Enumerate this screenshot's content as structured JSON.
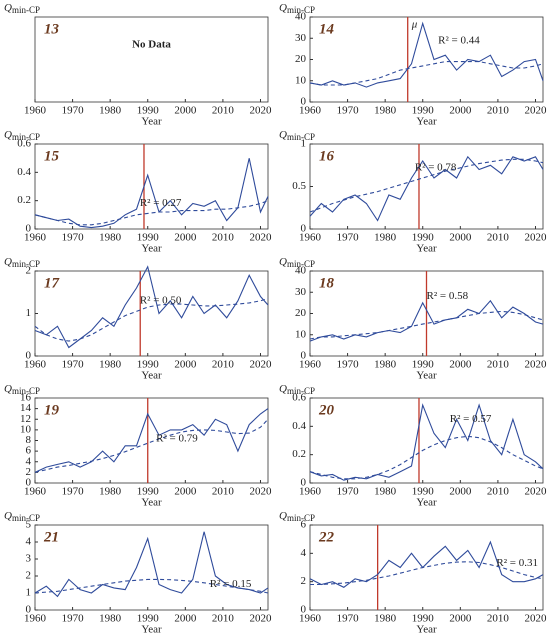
{
  "chart_data": [
    {
      "type": "line",
      "panel": "13",
      "ylabel": "Q",
      "ylabel_sub": "min-CP",
      "xlabel": "Year",
      "xlim": [
        1960,
        2022
      ],
      "xticks": [
        1960,
        1970,
        1980,
        1990,
        2000,
        2010,
        2020
      ],
      "annotation": "No Data"
    },
    {
      "type": "line",
      "panel": "14",
      "ylabel": "Q",
      "ylabel_sub": "min-CP",
      "xlabel": "Year",
      "xlim": [
        1960,
        2022
      ],
      "xticks": [
        1960,
        1970,
        1980,
        1990,
        2000,
        2010,
        2020
      ],
      "ylim": [
        0,
        40
      ],
      "yticks": [
        0,
        10,
        20,
        30,
        40
      ],
      "x": [
        1960,
        1963,
        1966,
        1969,
        1972,
        1975,
        1978,
        1981,
        1984,
        1987,
        1990,
        1993,
        1996,
        1999,
        2002,
        2005,
        2008,
        2011,
        2014,
        2017,
        2020,
        2022
      ],
      "series": [
        {
          "color": "#2f4b9b",
          "values": [
            9,
            8,
            10,
            8,
            9,
            7,
            9,
            10,
            11,
            18,
            37,
            20,
            22,
            15,
            20,
            19,
            22,
            12,
            15,
            19,
            20,
            10
          ]
        },
        {
          "color": "#2f4b9b",
          "style": "dashed",
          "values": [
            9,
            8,
            8,
            8,
            9,
            10,
            11,
            13,
            15,
            16,
            17,
            18,
            19,
            19,
            19,
            19,
            18,
            17,
            16,
            16,
            17,
            18
          ]
        }
      ],
      "change_point": 1986,
      "change_point_color": "#c0392b",
      "mu_label": "μ",
      "r2_label": "R² = 0.44"
    },
    {
      "type": "line",
      "panel": "15",
      "ylabel": "Q",
      "ylabel_sub": "min-CP",
      "xlabel": "Year",
      "xlim": [
        1960,
        2022
      ],
      "xticks": [
        1960,
        1970,
        1980,
        1990,
        2000,
        2010,
        2020
      ],
      "ylim": [
        0,
        0.6
      ],
      "yticks": [
        0,
        0.2,
        0.4,
        0.6
      ],
      "x": [
        1960,
        1963,
        1966,
        1969,
        1972,
        1975,
        1978,
        1981,
        1984,
        1987,
        1990,
        1993,
        1996,
        1999,
        2002,
        2005,
        2008,
        2011,
        2014,
        2017,
        2020,
        2022
      ],
      "series": [
        {
          "color": "#2f4b9b",
          "values": [
            0.1,
            0.08,
            0.06,
            0.07,
            0.02,
            0.01,
            0.02,
            0.04,
            0.1,
            0.14,
            0.38,
            0.12,
            0.2,
            0.1,
            0.18,
            0.16,
            0.2,
            0.06,
            0.15,
            0.5,
            0.12,
            0.23
          ]
        },
        {
          "color": "#2f4b9b",
          "style": "dashed",
          "values": [
            0.1,
            0.08,
            0.06,
            0.04,
            0.03,
            0.03,
            0.04,
            0.06,
            0.08,
            0.1,
            0.11,
            0.12,
            0.12,
            0.13,
            0.13,
            0.13,
            0.14,
            0.14,
            0.15,
            0.16,
            0.18,
            0.2
          ]
        }
      ],
      "change_point": 1989,
      "change_point_color": "#c0392b",
      "r2_label": "R² = 0.27"
    },
    {
      "type": "line",
      "panel": "16",
      "ylabel": "Q",
      "ylabel_sub": "min-CP",
      "xlabel": "Year",
      "xlim": [
        1960,
        2022
      ],
      "xticks": [
        1960,
        1970,
        1980,
        1990,
        2000,
        2010,
        2020
      ],
      "ylim": [
        0,
        1
      ],
      "yticks": [
        0,
        0.5,
        1
      ],
      "x": [
        1960,
        1963,
        1966,
        1969,
        1972,
        1975,
        1978,
        1981,
        1984,
        1987,
        1990,
        1993,
        1996,
        1999,
        2002,
        2005,
        2008,
        2011,
        2014,
        2017,
        2020,
        2022
      ],
      "series": [
        {
          "color": "#2f4b9b",
          "values": [
            0.15,
            0.3,
            0.2,
            0.35,
            0.4,
            0.3,
            0.1,
            0.4,
            0.35,
            0.6,
            0.8,
            0.6,
            0.7,
            0.6,
            0.85,
            0.7,
            0.75,
            0.65,
            0.85,
            0.8,
            0.85,
            0.7
          ]
        },
        {
          "color": "#2f4b9b",
          "style": "dashed",
          "values": [
            0.2,
            0.25,
            0.3,
            0.34,
            0.38,
            0.41,
            0.44,
            0.48,
            0.52,
            0.56,
            0.6,
            0.64,
            0.68,
            0.71,
            0.74,
            0.77,
            0.79,
            0.81,
            0.82,
            0.82,
            0.8,
            0.78
          ]
        }
      ],
      "change_point": 1989,
      "change_point_color": "#c0392b",
      "r2_label": "R² = 0.78"
    },
    {
      "type": "line",
      "panel": "17",
      "ylabel": "Q",
      "ylabel_sub": "min-CP",
      "xlabel": "Year",
      "xlim": [
        1960,
        2022
      ],
      "xticks": [
        1960,
        1970,
        1980,
        1990,
        2000,
        2010,
        2020
      ],
      "ylim": [
        0,
        2
      ],
      "yticks": [
        0,
        1,
        2
      ],
      "x": [
        1960,
        1963,
        1966,
        1969,
        1972,
        1975,
        1978,
        1981,
        1984,
        1987,
        1990,
        1993,
        1996,
        1999,
        2002,
        2005,
        2008,
        2011,
        2014,
        2017,
        2020,
        2022
      ],
      "series": [
        {
          "color": "#2f4b9b",
          "values": [
            0.6,
            0.5,
            0.7,
            0.2,
            0.4,
            0.6,
            0.9,
            0.7,
            1.2,
            1.6,
            2.1,
            1.0,
            1.3,
            0.9,
            1.4,
            1.0,
            1.2,
            0.9,
            1.3,
            1.9,
            1.4,
            1.2
          ]
        },
        {
          "color": "#2f4b9b",
          "style": "dashed",
          "values": [
            0.7,
            0.5,
            0.4,
            0.35,
            0.4,
            0.5,
            0.65,
            0.8,
            0.95,
            1.05,
            1.15,
            1.2,
            1.22,
            1.22,
            1.2,
            1.18,
            1.18,
            1.2,
            1.22,
            1.25,
            1.3,
            1.35
          ]
        }
      ],
      "change_point": 1988,
      "change_point_color": "#c0392b",
      "r2_label": "R² = 0.50"
    },
    {
      "type": "line",
      "panel": "18",
      "ylabel": "Q",
      "ylabel_sub": "min-CP",
      "xlabel": "Year",
      "xlim": [
        1960,
        2022
      ],
      "xticks": [
        1960,
        1970,
        1980,
        1990,
        2000,
        2010,
        2020
      ],
      "ylim": [
        0,
        40
      ],
      "yticks": [
        0,
        10,
        20,
        30,
        40
      ],
      "x": [
        1960,
        1963,
        1966,
        1969,
        1972,
        1975,
        1978,
        1981,
        1984,
        1987,
        1990,
        1993,
        1996,
        1999,
        2002,
        2005,
        2008,
        2011,
        2014,
        2017,
        2020,
        2022
      ],
      "series": [
        {
          "color": "#2f4b9b",
          "values": [
            7,
            9,
            10,
            8,
            10,
            9,
            11,
            12,
            11,
            14,
            25,
            15,
            17,
            18,
            22,
            20,
            26,
            18,
            23,
            20,
            16,
            15
          ]
        },
        {
          "color": "#2f4b9b",
          "style": "dashed",
          "values": [
            8,
            9,
            9,
            9.5,
            10,
            10.5,
            11,
            12,
            13,
            14,
            15,
            16,
            17,
            18,
            19,
            20,
            20.5,
            21,
            20.5,
            19.5,
            18,
            17
          ]
        }
      ],
      "change_point": 1991,
      "change_point_color": "#c0392b",
      "r2_label": "R² = 0.58"
    },
    {
      "type": "line",
      "panel": "19",
      "ylabel": "Q",
      "ylabel_sub": "min-CP",
      "xlabel": "Year",
      "xlim": [
        1960,
        2022
      ],
      "xticks": [
        1960,
        1970,
        1980,
        1990,
        2000,
        2010,
        2020
      ],
      "ylim": [
        0,
        16
      ],
      "yticks": [
        0,
        2,
        4,
        6,
        8,
        10,
        12,
        14,
        16
      ],
      "x": [
        1960,
        1963,
        1966,
        1969,
        1972,
        1975,
        1978,
        1981,
        1984,
        1987,
        1990,
        1993,
        1996,
        1999,
        2002,
        2005,
        2008,
        2011,
        2014,
        2017,
        2020,
        2022
      ],
      "series": [
        {
          "color": "#2f4b9b",
          "values": [
            2,
            3,
            3.5,
            4,
            3,
            4,
            6,
            4,
            7,
            7,
            13,
            9,
            10,
            10,
            11,
            9,
            12,
            11,
            6,
            11,
            13,
            14
          ]
        },
        {
          "color": "#2f4b9b",
          "style": "dashed",
          "values": [
            2,
            2.5,
            3,
            3.3,
            3.7,
            4.1,
            4.6,
            5.2,
            5.9,
            6.7,
            7.5,
            8.3,
            9,
            9.6,
            9.9,
            10,
            9.9,
            9.6,
            9.3,
            9.4,
            10.5,
            12
          ]
        }
      ],
      "change_point": 1990,
      "change_point_color": "#c0392b",
      "r2_label": "R² = 0.79"
    },
    {
      "type": "line",
      "panel": "20",
      "ylabel": "Q",
      "ylabel_sub": "min-CP",
      "xlabel": "Year",
      "xlim": [
        1960,
        2022
      ],
      "xticks": [
        1960,
        1970,
        1980,
        1990,
        2000,
        2010,
        2020
      ],
      "ylim": [
        0,
        0.6
      ],
      "yticks": [
        0,
        0.2,
        0.4,
        0.6
      ],
      "x": [
        1960,
        1963,
        1966,
        1969,
        1972,
        1975,
        1978,
        1981,
        1984,
        1987,
        1990,
        1993,
        1996,
        1999,
        2002,
        2005,
        2008,
        2011,
        2014,
        2017,
        2020,
        2022
      ],
      "series": [
        {
          "color": "#2f4b9b",
          "values": [
            0.08,
            0.05,
            0.06,
            0.02,
            0.04,
            0.03,
            0.06,
            0.04,
            0.08,
            0.12,
            0.55,
            0.35,
            0.25,
            0.45,
            0.3,
            0.55,
            0.3,
            0.2,
            0.45,
            0.2,
            0.15,
            0.1
          ]
        },
        {
          "color": "#2f4b9b",
          "style": "dashed",
          "values": [
            0.08,
            0.06,
            0.04,
            0.03,
            0.03,
            0.04,
            0.06,
            0.09,
            0.13,
            0.18,
            0.23,
            0.27,
            0.3,
            0.32,
            0.33,
            0.32,
            0.29,
            0.25,
            0.2,
            0.16,
            0.12,
            0.1
          ]
        }
      ],
      "change_point": 1989,
      "change_point_color": "#c0392b",
      "r2_label": "R² = 0.57"
    },
    {
      "type": "line",
      "panel": "21",
      "ylabel": "Q",
      "ylabel_sub": "min-CP",
      "xlabel": "Year",
      "xlim": [
        1960,
        2022
      ],
      "xticks": [
        1960,
        1970,
        1980,
        1990,
        2000,
        2010,
        2020
      ],
      "ylim": [
        0,
        5
      ],
      "yticks": [
        0,
        1,
        2,
        3,
        4,
        5
      ],
      "x": [
        1960,
        1963,
        1966,
        1969,
        1972,
        1975,
        1978,
        1981,
        1984,
        1987,
        1990,
        1993,
        1996,
        1999,
        2002,
        2005,
        2008,
        2011,
        2014,
        2017,
        2020,
        2022
      ],
      "series": [
        {
          "color": "#2f4b9b",
          "values": [
            1,
            1.4,
            0.8,
            1.8,
            1.2,
            1.0,
            1.5,
            1.3,
            1.2,
            2.5,
            4.2,
            1.5,
            1.2,
            1.0,
            1.8,
            4.6,
            2.0,
            1.5,
            1.3,
            1.2,
            1.0,
            1.3
          ]
        },
        {
          "color": "#2f4b9b",
          "style": "dashed",
          "values": [
            1.0,
            1.05,
            1.1,
            1.2,
            1.3,
            1.4,
            1.5,
            1.6,
            1.7,
            1.75,
            1.8,
            1.8,
            1.78,
            1.74,
            1.68,
            1.6,
            1.5,
            1.4,
            1.3,
            1.2,
            1.1,
            1.0
          ]
        }
      ],
      "r2_label": "R² = 0.15"
    },
    {
      "type": "line",
      "panel": "22",
      "ylabel": "Q",
      "ylabel_sub": "min-CP",
      "xlabel": "Year",
      "xlim": [
        1960,
        2022
      ],
      "xticks": [
        1960,
        1970,
        1980,
        1990,
        2000,
        2010,
        2020
      ],
      "ylim": [
        0,
        6
      ],
      "yticks": [
        0,
        2,
        4,
        6
      ],
      "x": [
        1960,
        1963,
        1966,
        1969,
        1972,
        1975,
        1978,
        1981,
        1984,
        1987,
        1990,
        1993,
        1996,
        1999,
        2002,
        2005,
        2008,
        2011,
        2014,
        2017,
        2020,
        2022
      ],
      "series": [
        {
          "color": "#2f4b9b",
          "values": [
            2.2,
            1.8,
            2.0,
            1.6,
            2.2,
            2.0,
            2.5,
            3.5,
            3.0,
            4.0,
            3.0,
            3.8,
            4.5,
            3.5,
            4.2,
            3.0,
            4.8,
            2.5,
            2.0,
            2.0,
            2.2,
            2.5
          ]
        },
        {
          "color": "#2f4b9b",
          "style": "dashed",
          "values": [
            1.8,
            1.8,
            1.85,
            1.9,
            2.0,
            2.1,
            2.25,
            2.4,
            2.6,
            2.8,
            3.0,
            3.15,
            3.3,
            3.38,
            3.4,
            3.35,
            3.2,
            3.0,
            2.75,
            2.5,
            2.3,
            2.2
          ]
        }
      ],
      "change_point": 1978,
      "change_point_color": "#c0392b",
      "r2_label": "R² = 0.31"
    }
  ]
}
